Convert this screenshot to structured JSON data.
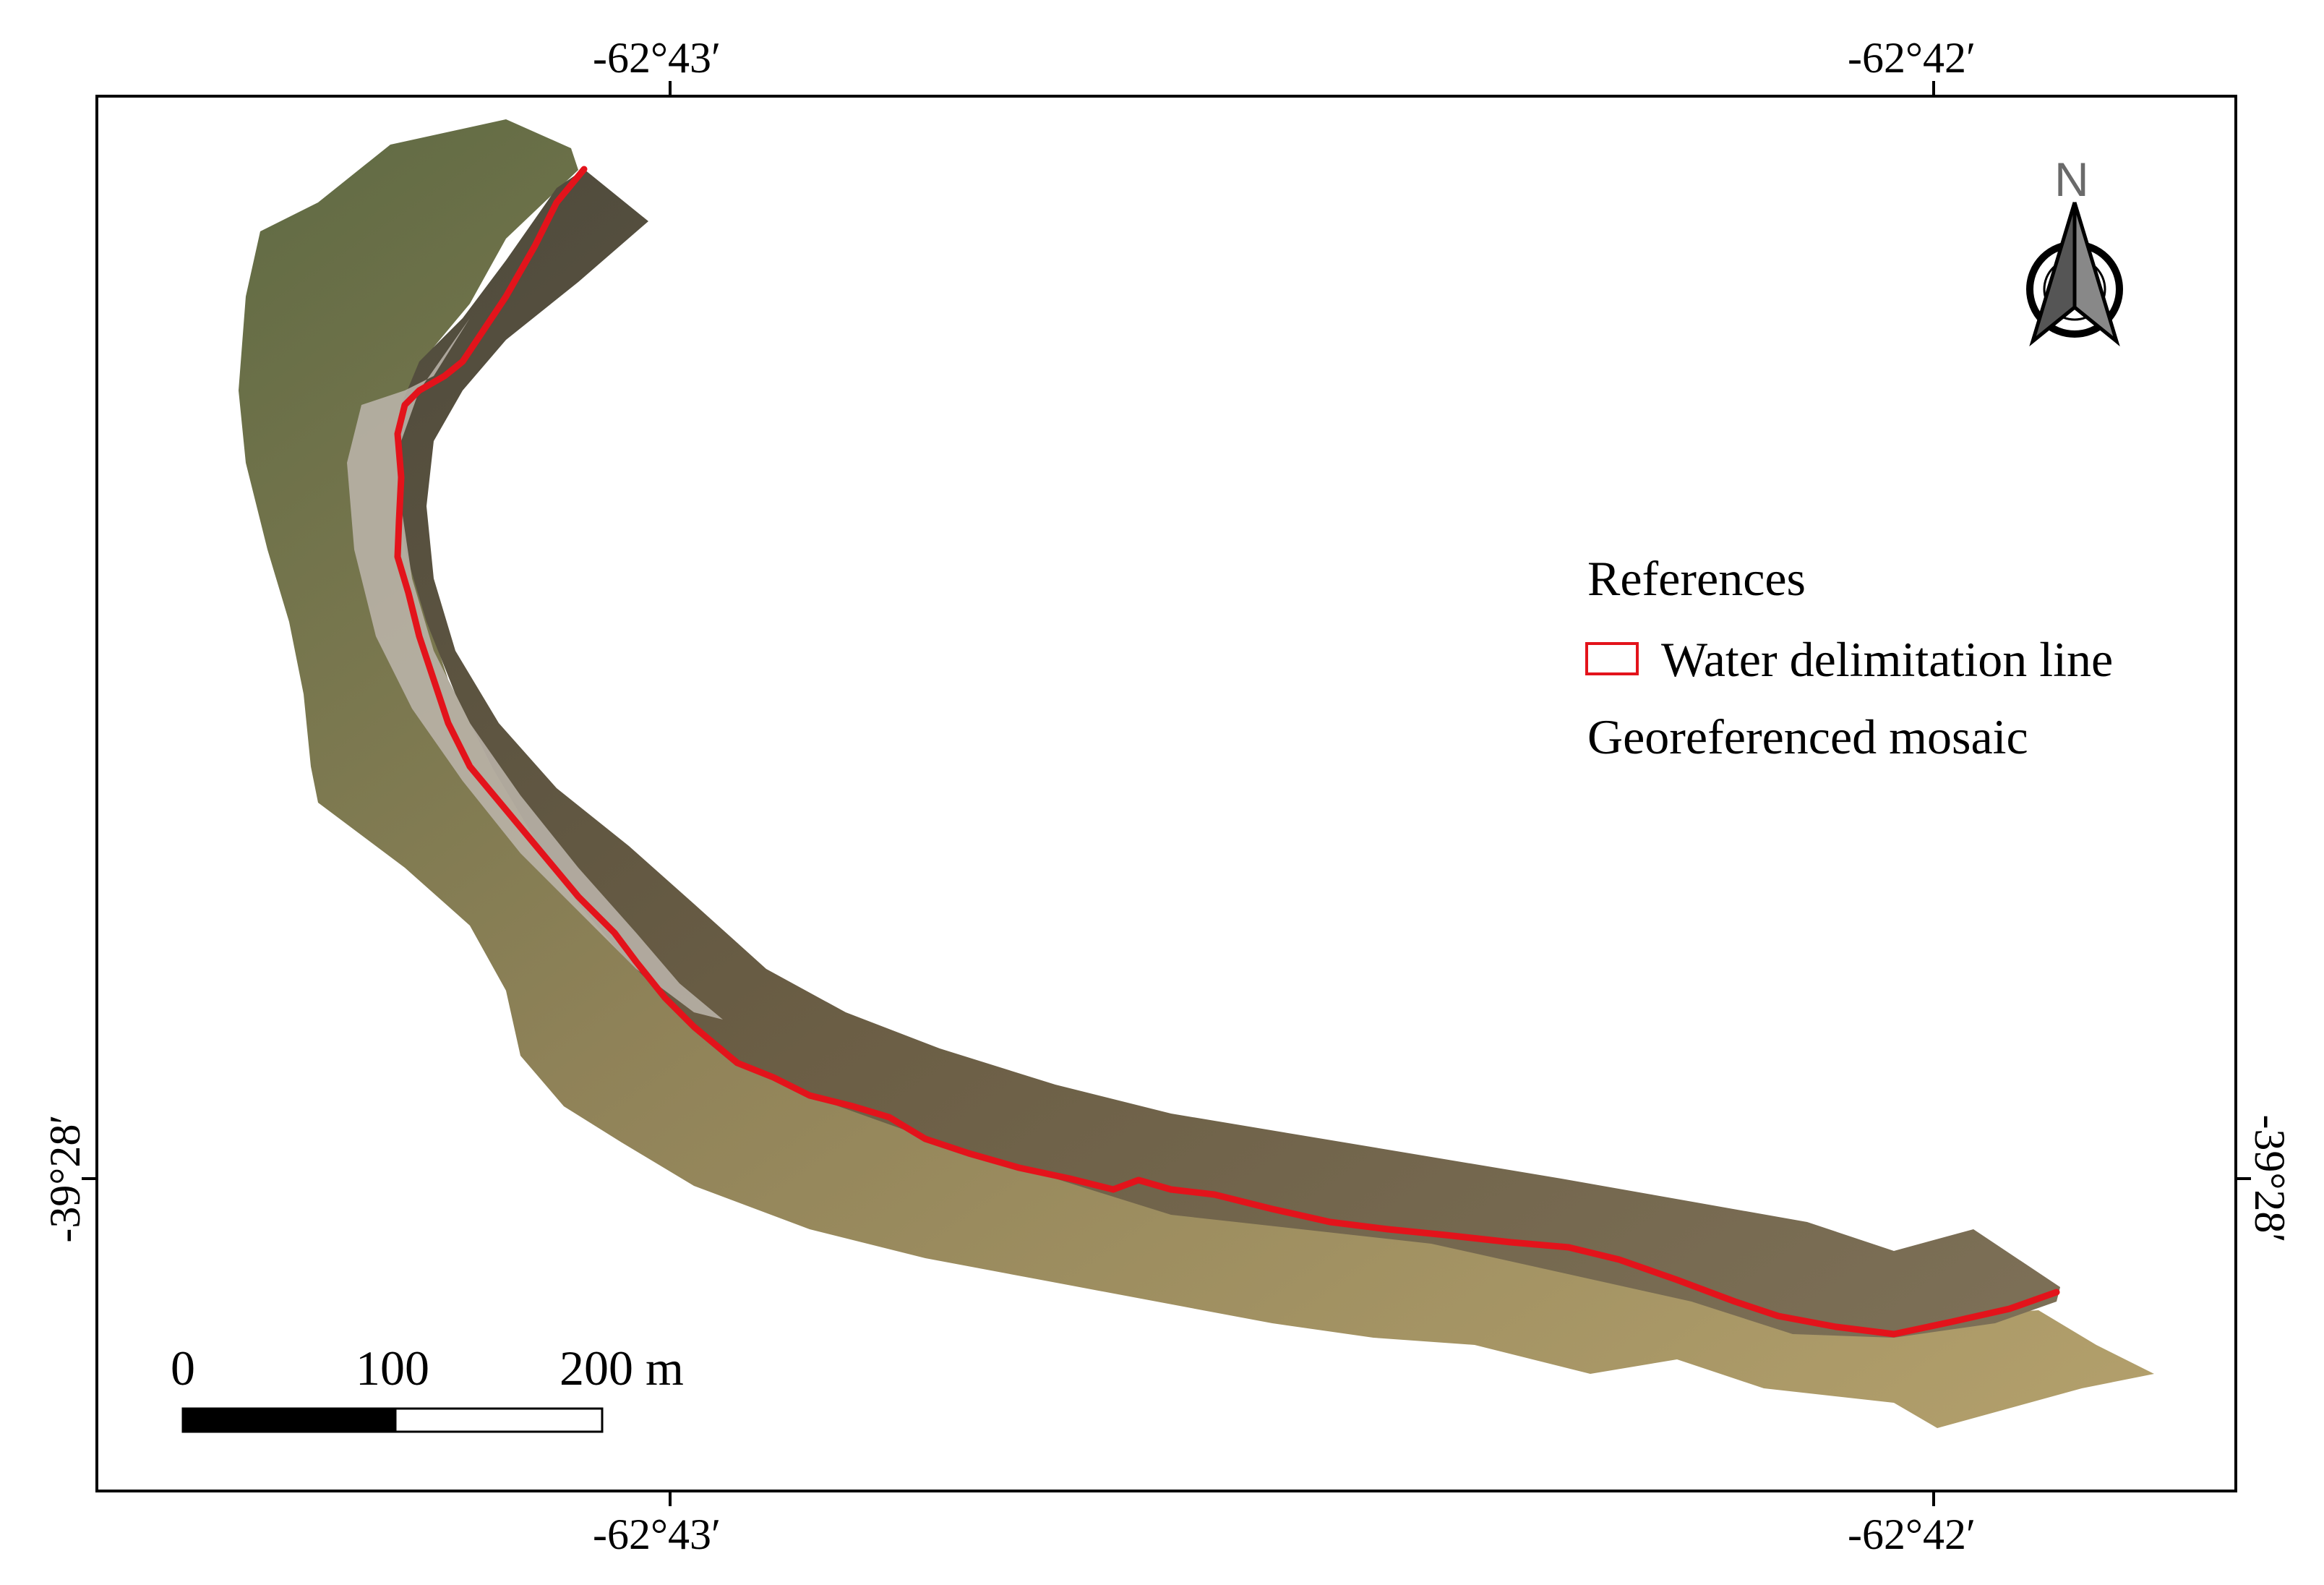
{
  "map": {
    "graticule": {
      "top_x_labels": [
        "-62°43′",
        "-62°42′"
      ],
      "bottom_x_labels": [
        "-62°43′",
        "-62°42′"
      ],
      "left_y_label": "-39°28′",
      "right_y_label": "-39°28′"
    },
    "north_arrow": {
      "label": "N",
      "icon": "north-arrow-icon"
    },
    "legend": {
      "title": "References",
      "items": [
        {
          "label": "Water delimitation line",
          "symbol": "red-outline-box",
          "color": "#e3131b"
        },
        {
          "label": "Georeferenced mosaic"
        }
      ]
    },
    "scale_bar": {
      "labels": [
        "0",
        "100",
        "200 m"
      ]
    },
    "colors": {
      "water_line": "#e3131b",
      "water": "#6b5e45",
      "land": "#9c8a5f",
      "beach": "#bdb6ad"
    }
  }
}
